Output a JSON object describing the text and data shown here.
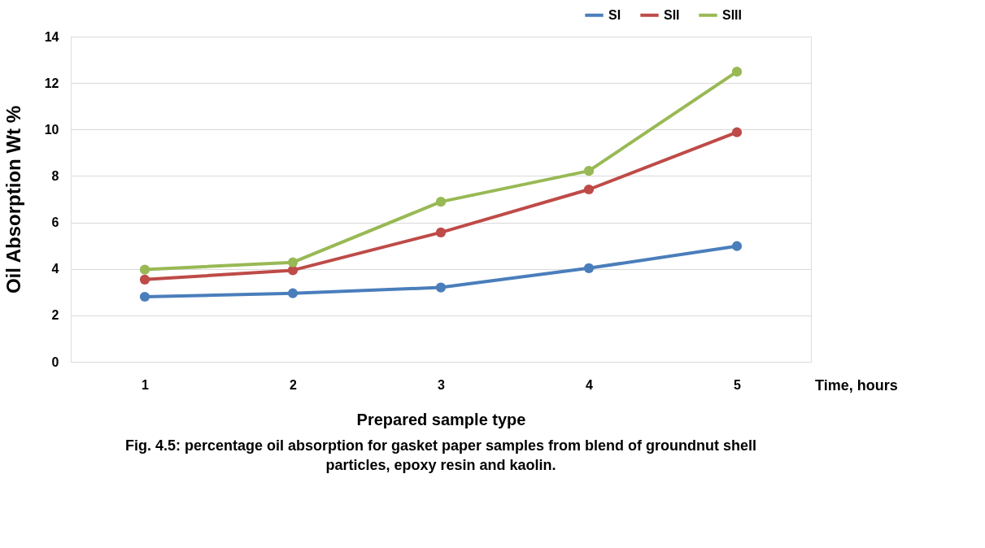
{
  "chart_data": {
    "type": "line",
    "categories": [
      "1",
      "2",
      "3",
      "4",
      "5"
    ],
    "series": [
      {
        "name": "SI",
        "color": "#4a7ebb",
        "values": [
          2.8,
          2.95,
          3.2,
          4.03,
          4.98
        ]
      },
      {
        "name": "SII",
        "color": "#be4b48",
        "values": [
          3.54,
          3.94,
          5.57,
          7.42,
          9.88
        ]
      },
      {
        "name": "SIII",
        "color": "#98b954",
        "values": [
          3.97,
          4.28,
          6.89,
          8.22,
          12.49
        ]
      }
    ],
    "xlabel": "Prepared sample type",
    "ylabel": "Oil Absorption Wt %",
    "ylim": [
      0,
      14
    ],
    "yticks": [
      0,
      2,
      4,
      6,
      8,
      10,
      12,
      14
    ],
    "grid": "y",
    "legend": "top right",
    "marker": "circle",
    "line_style": "solid",
    "annotations": [
      "Time, hours",
      "Fig. 4.5: percentage oil absorption for gasket paper samples from blend of groundnut shell particles, epoxy resin and kaolin."
    ]
  }
}
